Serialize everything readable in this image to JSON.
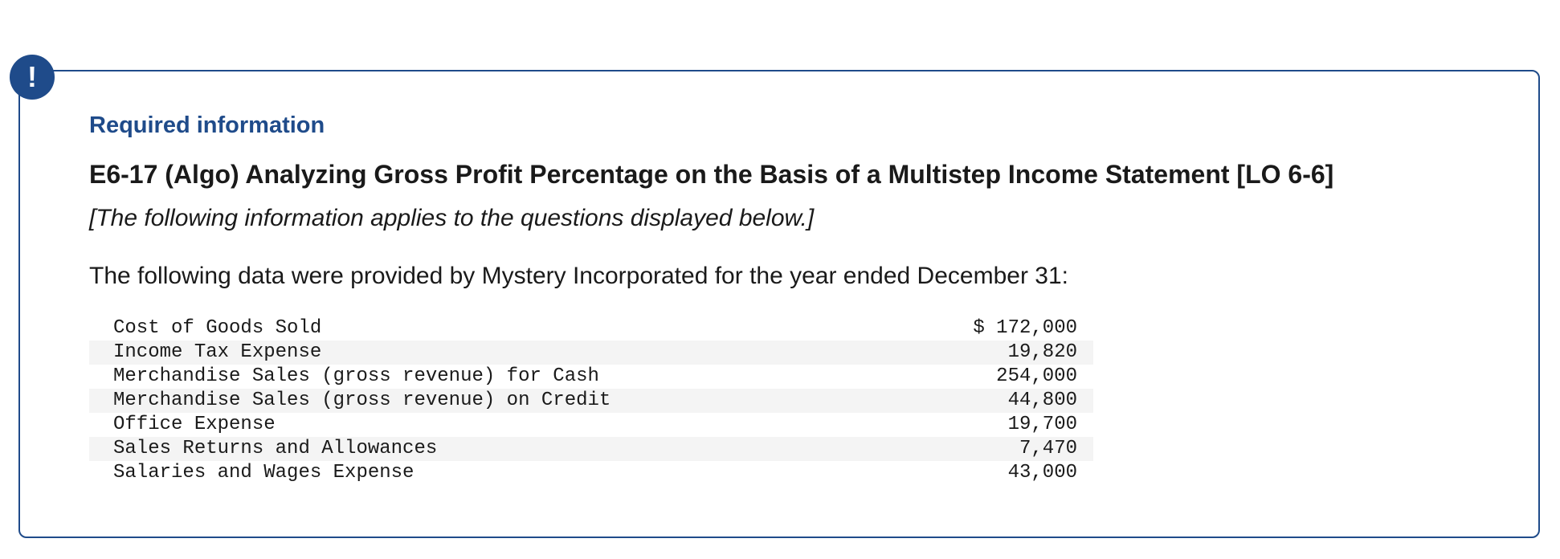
{
  "alert": {
    "icon": "exclamation-icon",
    "glyph": "!",
    "color": "#1f4b8a"
  },
  "header": {
    "required_label": "Required information",
    "title": "E6-17 (Algo) Analyzing Gross Profit Percentage on the Basis of a Multistep Income Statement [LO 6-6]",
    "note": "[The following information applies to the questions displayed below.]"
  },
  "intro": "The following data were provided by Mystery Incorporated for the year ended December 31:",
  "table": {
    "rows": [
      {
        "label": "Cost of Goods Sold",
        "value": "$ 172,000"
      },
      {
        "label": "Income Tax Expense",
        "value": "19,820"
      },
      {
        "label": "Merchandise Sales (gross revenue) for Cash",
        "value": "254,000"
      },
      {
        "label": "Merchandise Sales (gross revenue) on Credit",
        "value": "44,800"
      },
      {
        "label": "Office Expense",
        "value": "19,700"
      },
      {
        "label": "Sales Returns and Allowances",
        "value": "7,470"
      },
      {
        "label": "Salaries and Wages Expense",
        "value": "43,000"
      }
    ]
  }
}
